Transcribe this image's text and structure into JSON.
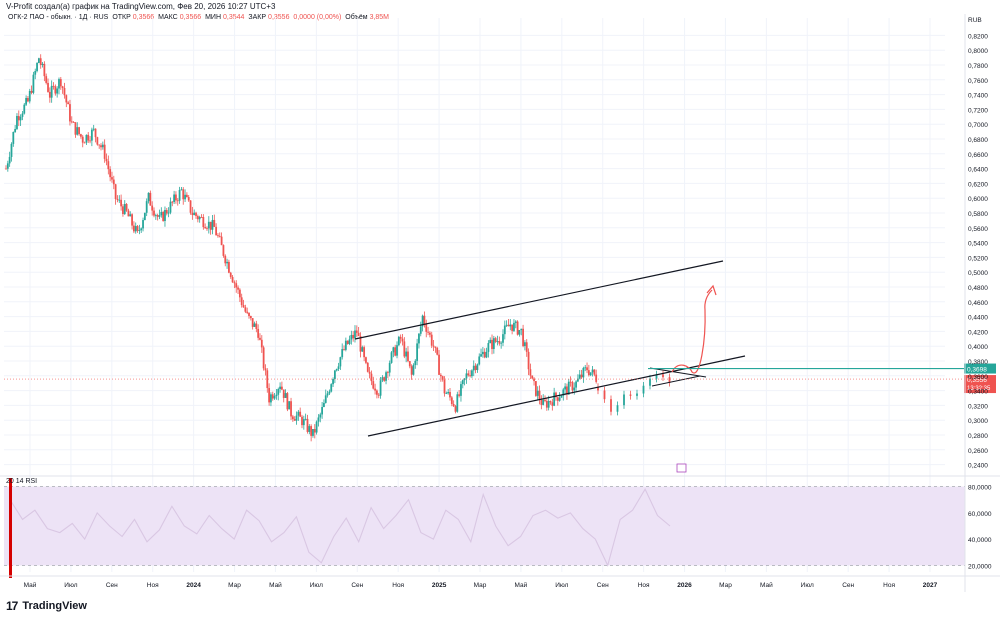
{
  "header": {
    "author_line": "V-Profit создал(а) график на TradingView.com, Фев 20, 2026 10:27 UTC+3"
  },
  "legend": {
    "symbol": "ОГК-2 ПАО - обыкн. · 1Д · RUS",
    "open_label": "ОТКР",
    "open": "0,3566",
    "high_label": "МАКС",
    "high": "0,3566",
    "low_label": "МИН",
    "low": "0,3544",
    "close_label": "ЗАКР",
    "close": "0,3556",
    "change": "0,0000 (0,00%)",
    "volume_label": "Объём",
    "volume": "3,85M"
  },
  "price_axis": {
    "currency": "RUB",
    "ticks": [
      "0,8200",
      "0,8000",
      "0,7800",
      "0,7600",
      "0,7400",
      "0,7200",
      "0,7000",
      "0,6800",
      "0,6600",
      "0,6400",
      "0,6200",
      "0,6000",
      "0,5800",
      "0,5600",
      "0,5400",
      "0,5200",
      "0,5000",
      "0,4800",
      "0,4600",
      "0,4400",
      "0,4200",
      "0,4000",
      "0,3800",
      "0,3600",
      "0,3400",
      "0,3200",
      "0,3000",
      "0,2800",
      "0,2600",
      "0,2400"
    ],
    "level_label": "0,3698",
    "last_label": "0,3556",
    "countdown": "13:32:35",
    "level_color": "#26a69a",
    "last_color": "#ef5350"
  },
  "rsi": {
    "label": "20 14 RSI",
    "ticks": [
      "80,0000",
      "60,0000",
      "40,0000",
      "20,0000"
    ],
    "band_color": "#ede3f6"
  },
  "time_axis": {
    "labels": [
      "Май",
      "Июл",
      "Сен",
      "Ноя",
      "2024",
      "Мар",
      "Май",
      "Июл",
      "Сен",
      "Ноя",
      "2025",
      "Мар",
      "Май",
      "Июл",
      "Сен",
      "Ноя",
      "2026",
      "Мар",
      "Май",
      "Июл",
      "Сен",
      "Ноя",
      "2027"
    ]
  },
  "brand": {
    "name": "TradingView"
  },
  "chart_data": {
    "type": "line",
    "title": "ОГК-2 ПАО - обыкн. · 1Д · RUS",
    "ylabel": "RUB",
    "ylim": [
      0.23,
      0.83
    ],
    "series": [
      {
        "values": [
          0.64,
          0.71,
          0.73,
          0.79,
          0.74,
          0.76,
          0.7,
          0.68,
          0.69,
          0.66,
          0.6,
          0.58,
          0.55,
          0.6,
          0.57,
          0.59,
          0.61,
          0.58,
          0.57,
          0.56,
          0.52,
          0.48,
          0.44,
          0.42,
          0.33,
          0.35,
          0.31,
          0.3,
          0.28,
          0.32,
          0.37,
          0.4,
          0.42,
          0.36,
          0.34,
          0.38,
          0.41,
          0.36,
          0.44,
          0.4,
          0.34,
          0.32,
          0.36,
          0.38,
          0.4,
          0.41,
          0.43,
          0.42,
          0.35,
          0.32,
          0.33,
          0.34,
          0.35,
          0.37,
          0.355
        ]
      }
    ],
    "rsi": {
      "range": [
        15,
        85
      ],
      "levels": [
        80,
        20
      ],
      "values": [
        70,
        55,
        62,
        48,
        45,
        52,
        40,
        60,
        50,
        42,
        55,
        38,
        47,
        65,
        50,
        44,
        58,
        48,
        40,
        62,
        54,
        38,
        45,
        57,
        30,
        22,
        42,
        56,
        38,
        64,
        48,
        58,
        70,
        45,
        40,
        62,
        55,
        38,
        74,
        50,
        35,
        42,
        58,
        62,
        56,
        60,
        48,
        40,
        20,
        55,
        62,
        78,
        58,
        50
      ]
    },
    "annotations": {
      "resistance_level": 0.3698,
      "last_price": 0.3556,
      "channel": "ascending channel",
      "forecast_arrow": "up"
    },
    "grid": true
  }
}
